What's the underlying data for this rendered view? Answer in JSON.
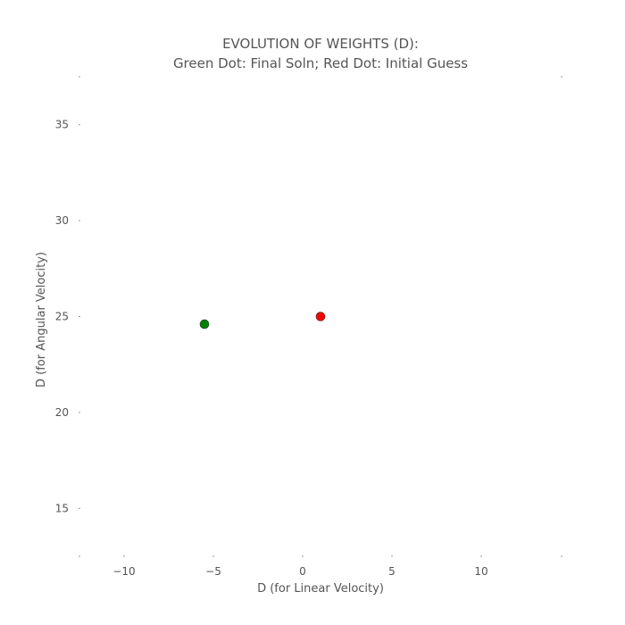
{
  "chart_data": {
    "type": "scatter",
    "title": "EVOLUTION OF WEIGHTS (D):",
    "subtitle": "Green Dot: Final Soln; Red Dot: Initial Guess",
    "xlabel": "D (for Linear Velocity)",
    "ylabel": "D (for Angular Velocity)",
    "xlim": [
      -12.5,
      14.5
    ],
    "ylim": [
      12.5,
      37.5
    ],
    "xticks": [
      -10,
      -5,
      0,
      5,
      10
    ],
    "xtick_labels": [
      "−10",
      "−5",
      "0",
      "5",
      "10"
    ],
    "yticks": [
      15,
      20,
      25,
      30,
      35
    ],
    "ytick_labels": [
      "15",
      "20",
      "25",
      "30",
      "35"
    ],
    "grid": false,
    "points": [
      {
        "x": -5.5,
        "y": 24.6,
        "color": "#008000"
      },
      {
        "x": 1.0,
        "y": 25.0,
        "color": "#ff0000"
      }
    ]
  }
}
